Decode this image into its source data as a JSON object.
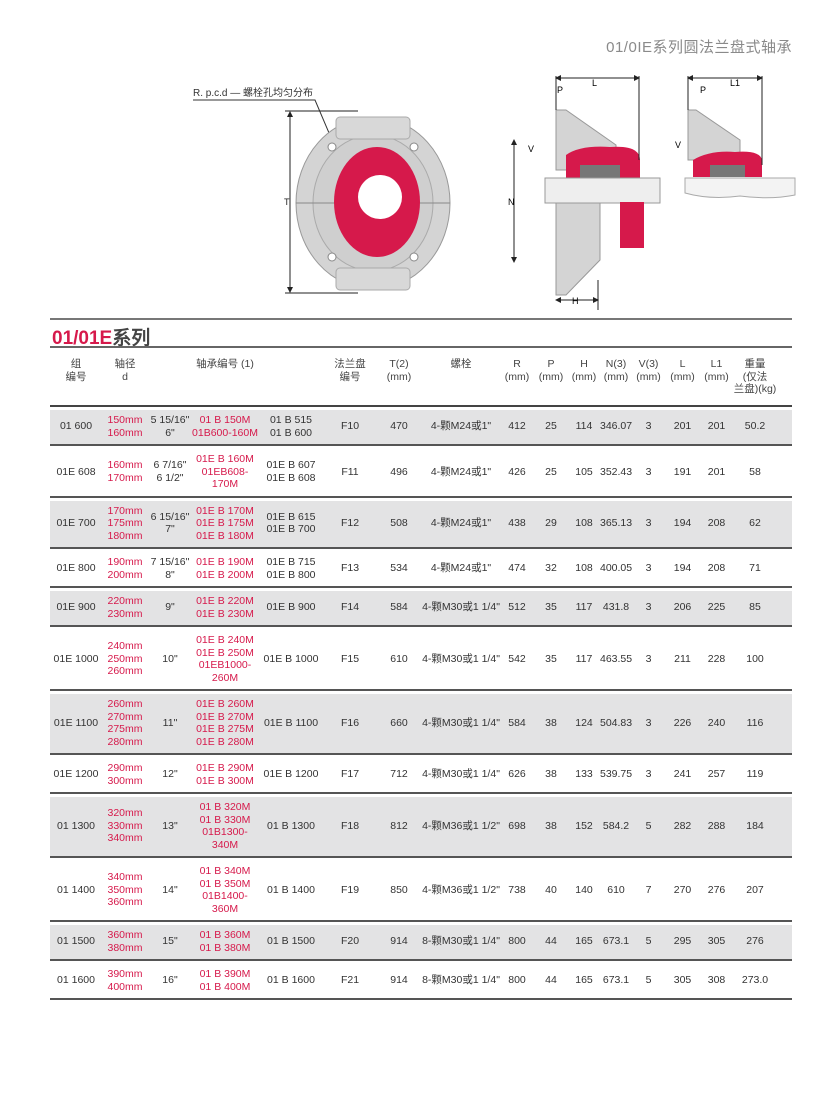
{
  "header": {
    "title": "01/0IE系列圆法兰盘式轴承"
  },
  "diagram": {
    "callout": "R. p.c.d — 螺栓孔均匀分布",
    "dims": {
      "T": "T",
      "N": "N",
      "V": "V",
      "P": "P",
      "L": "L",
      "L1": "L1",
      "H": "H"
    },
    "colors": {
      "accent": "#d6194b",
      "housing": "#d4d4d4"
    }
  },
  "series": {
    "code": "01/01E",
    "suffix": "系列"
  },
  "table": {
    "headers": [
      "组\n编号",
      "轴径\nd",
      "",
      "轴承编号 (1)",
      "",
      "法兰盘\n编号",
      "T(2)\n(mm)",
      "螺栓",
      "R\n(mm)",
      "P\n(mm)",
      "H\n(mm)",
      "N(3)\n(mm)",
      "V(3)\n(mm)",
      "L\n(mm)",
      "L1\n(mm)",
      "重量\n(仅法\n兰盘)(kg)"
    ],
    "rows": [
      {
        "group": "01 600",
        "mm": "150mm\n160mm",
        "inch": "5 15/16\"\n6\"",
        "bearing_m": "01 B 150M\n01B600-160M",
        "bearing": "01 B 515\n01 B 600",
        "flange": "F10",
        "T": "470",
        "bolt": "4-颗M24或1\"",
        "R": "412",
        "P": "25",
        "H": "114",
        "N": "346.07",
        "V": "3",
        "L": "201",
        "L1": "201",
        "weight": "50.2"
      },
      {
        "group": "01E 608",
        "mm": "160mm\n170mm",
        "inch": "6 7/16\"\n6 1/2\"",
        "bearing_m": "01E B 160M\n01EB608-170M",
        "bearing": "01E B 607\n01E B 608",
        "flange": "F11",
        "T": "496",
        "bolt": "4-颗M24或1\"",
        "R": "426",
        "P": "25",
        "H": "105",
        "N": "352.43",
        "V": "3",
        "L": "191",
        "L1": "201",
        "weight": "58"
      },
      {
        "group": "01E 700",
        "mm": "170mm\n175mm\n180mm",
        "inch": "6 15/16\"\n7\"",
        "bearing_m": "01E B 170M\n01E B 175M\n01E B 180M",
        "bearing": "01E B 615\n01E B 700",
        "flange": "F12",
        "T": "508",
        "bolt": "4-颗M24或1\"",
        "R": "438",
        "P": "29",
        "H": "108",
        "N": "365.13",
        "V": "3",
        "L": "194",
        "L1": "208",
        "weight": "62"
      },
      {
        "group": "01E 800",
        "mm": "190mm\n200mm",
        "inch": "7 15/16\"\n8\"",
        "bearing_m": "01E B 190M\n01E B 200M",
        "bearing": "01E B 715\n01E B 800",
        "flange": "F13",
        "T": "534",
        "bolt": "4-颗M24或1\"",
        "R": "474",
        "P": "32",
        "H": "108",
        "N": "400.05",
        "V": "3",
        "L": "194",
        "L1": "208",
        "weight": "71"
      },
      {
        "group": "01E 900",
        "mm": "220mm\n230mm",
        "inch": "9\"",
        "bearing_m": "01E B 220M\n01E B 230M",
        "bearing": "01E B 900",
        "flange": "F14",
        "T": "584",
        "bolt": "4-颗M30或1 1/4\"",
        "R": "512",
        "P": "35",
        "H": "117",
        "N": "431.8",
        "V": "3",
        "L": "206",
        "L1": "225",
        "weight": "85"
      },
      {
        "group": "01E 1000",
        "mm": "240mm\n250mm\n260mm",
        "inch": "10\"",
        "bearing_m": "01E B 240M\n01E B 250M\n01EB1000-260M",
        "bearing": "01E B 1000",
        "flange": "F15",
        "T": "610",
        "bolt": "4-颗M30或1 1/4\"",
        "R": "542",
        "P": "35",
        "H": "117",
        "N": "463.55",
        "V": "3",
        "L": "211",
        "L1": "228",
        "weight": "100"
      },
      {
        "group": "01E 1100",
        "mm": "260mm\n270mm\n275mm\n280mm",
        "inch": "11\"",
        "bearing_m": "01E B 260M\n01E B 270M\n01E B 275M\n01E B 280M",
        "bearing": "01E B 1100",
        "flange": "F16",
        "T": "660",
        "bolt": "4-颗M30或1 1/4\"",
        "R": "584",
        "P": "38",
        "H": "124",
        "N": "504.83",
        "V": "3",
        "L": "226",
        "L1": "240",
        "weight": "116"
      },
      {
        "group": "01E 1200",
        "mm": "290mm\n300mm",
        "inch": "12\"",
        "bearing_m": "01E B 290M\n01E B 300M",
        "bearing": "01E B 1200",
        "flange": "F17",
        "T": "712",
        "bolt": "4-颗M30或1 1/4\"",
        "R": "626",
        "P": "38",
        "H": "133",
        "N": "539.75",
        "V": "3",
        "L": "241",
        "L1": "257",
        "weight": "119"
      },
      {
        "group": "01 1300",
        "mm": "320mm\n330mm\n340mm",
        "inch": "13\"",
        "bearing_m": "01 B 320M\n01 B 330M\n01B1300-340M",
        "bearing": "01 B 1300",
        "flange": "F18",
        "T": "812",
        "bolt": "4-颗M36或1 1/2\"",
        "R": "698",
        "P": "38",
        "H": "152",
        "N": "584.2",
        "V": "5",
        "L": "282",
        "L1": "288",
        "weight": "184"
      },
      {
        "group": "01 1400",
        "mm": "340mm\n350mm\n360mm",
        "inch": "14\"",
        "bearing_m": "01 B 340M\n01 B 350M\n01B1400-360M",
        "bearing": "01 B 1400",
        "flange": "F19",
        "T": "850",
        "bolt": "4-颗M36或1 1/2\"",
        "R": "738",
        "P": "40",
        "H": "140",
        "N": "610",
        "V": "7",
        "L": "270",
        "L1": "276",
        "weight": "207"
      },
      {
        "group": "01 1500",
        "mm": "360mm\n380mm",
        "inch": "15\"",
        "bearing_m": "01 B 360M\n01 B 380M",
        "bearing": "01 B 1500",
        "flange": "F20",
        "T": "914",
        "bolt": "8-颗M30或1 1/4\"",
        "R": "800",
        "P": "44",
        "H": "165",
        "N": "673.1",
        "V": "5",
        "L": "295",
        "L1": "305",
        "weight": "276"
      },
      {
        "group": "01 1600",
        "mm": "390mm\n400mm",
        "inch": "16\"",
        "bearing_m": "01 B 390M\n01 B 400M",
        "bearing": "01 B 1600",
        "flange": "F21",
        "T": "914",
        "bolt": "8-颗M30或1 1/4\"",
        "R": "800",
        "P": "44",
        "H": "165",
        "N": "673.1",
        "V": "5",
        "L": "305",
        "L1": "308",
        "weight": "273.0"
      }
    ]
  }
}
